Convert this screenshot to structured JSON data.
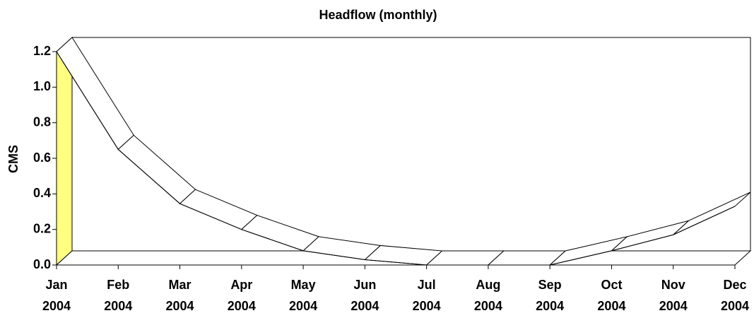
{
  "chart_data": {
    "type": "line3d",
    "title": "Headflow (monthly)",
    "y_label": "CMS",
    "categories": [
      "Jan 2004",
      "Feb 2004",
      "Mar 2004",
      "Apr 2004",
      "May 2004",
      "Jun 2004",
      "Jul 2004",
      "Aug 2004",
      "Sep 2004",
      "Oct 2004",
      "Nov 2004",
      "Dec 2004"
    ],
    "values": [
      1.2,
      0.65,
      0.345,
      0.2,
      0.08,
      0.03,
      0.0,
      0.0,
      0.0,
      0.08,
      0.17,
      0.33
    ],
    "ylim": [
      0,
      1.2
    ],
    "yticks": [
      {
        "value": 0,
        "label": "0.0"
      },
      0.2,
      0.4,
      0.6,
      0.8,
      {
        "value": 1,
        "label": "1.0"
      },
      1.2
    ],
    "wall_color": "#ffff80",
    "color": "#ffffff"
  }
}
